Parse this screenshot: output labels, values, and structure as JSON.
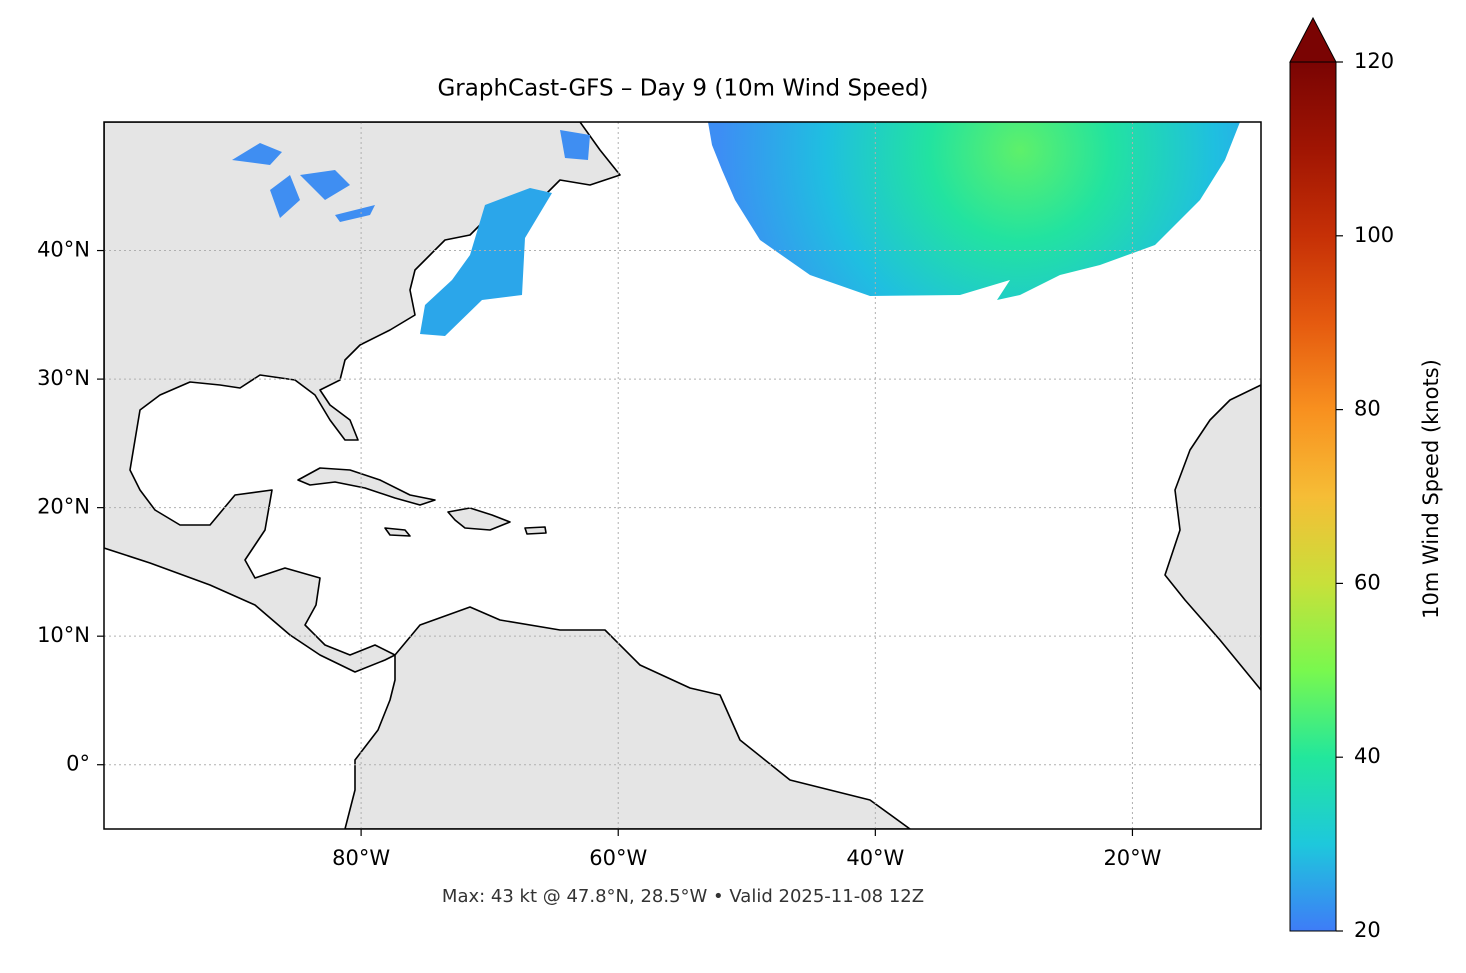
{
  "chart_data": {
    "type": "map",
    "title": "GraphCast-GFS – Day 9 (10m Wind Speed)",
    "note": "Max: 43 kt @ 47.8°N, 28.5°W • Valid 2025-11-08 12Z",
    "xlim": [
      -100,
      -10
    ],
    "ylim": [
      -5,
      50
    ],
    "xticks": [
      {
        "value": -80,
        "label": "80°W"
      },
      {
        "value": -60,
        "label": "60°W"
      },
      {
        "value": -40,
        "label": "40°W"
      },
      {
        "value": -20,
        "label": "20°W"
      }
    ],
    "yticks": [
      {
        "value": 0,
        "label": "0°"
      },
      {
        "value": 10,
        "label": "10°N"
      },
      {
        "value": 20,
        "label": "20°N"
      },
      {
        "value": 30,
        "label": "30°N"
      },
      {
        "value": 40,
        "label": "40°N"
      }
    ],
    "grid": true,
    "colorbar": {
      "label": "10m Wind Speed (knots)",
      "lim": [
        20,
        120
      ],
      "ticks": [
        20,
        40,
        60,
        80,
        100,
        120
      ],
      "extend": "max"
    }
  }
}
